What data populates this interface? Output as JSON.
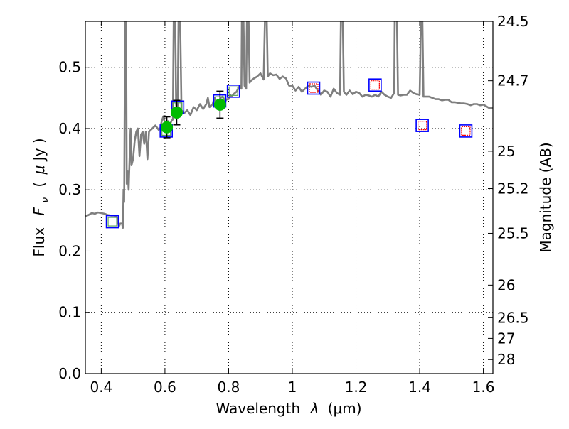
{
  "chart_data": {
    "type": "scatter",
    "title": "",
    "xlabel_text": "Wavelength",
    "xlabel_symbol": "λ",
    "xlabel_unit": "(μm)",
    "ylabel_text": "Flux",
    "ylabel_symbol": "F",
    "ylabel_subscript": "ν",
    "ylabel_unit_open": "(",
    "ylabel_unit_mu": "μ",
    "ylabel_unit_rest": "Jy )",
    "y2label": "Magnitude (AB)",
    "xlim": [
      0.35,
      1.63
    ],
    "ylim": [
      0.0,
      0.575
    ],
    "grid": true,
    "grid_style": "dotted",
    "x_ticks": [
      0.4,
      0.6,
      0.8,
      1.0,
      1.2,
      1.4,
      1.6
    ],
    "x_tick_labels": [
      "0.4",
      "0.6",
      "0.8",
      "1",
      "1.2",
      "1.4",
      "1.6"
    ],
    "y_ticks": [
      0.0,
      0.1,
      0.2,
      0.3,
      0.4,
      0.5
    ],
    "y_tick_labels": [
      "0.0",
      "0.1",
      "0.2",
      "0.3",
      "0.4",
      "0.5"
    ],
    "y2_ticks": [
      {
        "label": "24.5",
        "flux": 0.575
      },
      {
        "label": "24.7",
        "flux": 0.478
      },
      {
        "label": "25",
        "flux": 0.363
      },
      {
        "label": "25.2",
        "flux": 0.302
      },
      {
        "label": "25.5",
        "flux": 0.229
      },
      {
        "label": "26",
        "flux": 0.1445
      },
      {
        "label": "26.5",
        "flux": 0.0912
      },
      {
        "label": "27",
        "flux": 0.0575
      },
      {
        "label": "28",
        "flux": 0.0229
      }
    ],
    "colors": {
      "template": "#7f7f7f",
      "observed": "#00bb00",
      "model_box": "#0000ff",
      "model_inner_green": "#5aa55a",
      "model_inner_red": "#ff0000",
      "errorbar": "#000000",
      "grid": "#000000"
    },
    "series": [
      {
        "name": "template spectrum",
        "kind": "line",
        "points": [
          [
            0.35,
            0.257
          ],
          [
            0.36,
            0.259
          ],
          [
            0.37,
            0.262
          ],
          [
            0.38,
            0.261
          ],
          [
            0.39,
            0.263
          ],
          [
            0.4,
            0.262
          ],
          [
            0.41,
            0.261
          ],
          [
            0.42,
            0.259
          ],
          [
            0.43,
            0.258
          ],
          [
            0.44,
            0.258
          ],
          [
            0.45,
            0.255
          ],
          [
            0.455,
            0.24
          ],
          [
            0.46,
            0.245
          ],
          [
            0.465,
            0.245
          ],
          [
            0.468,
            0.238
          ],
          [
            0.47,
            0.3
          ],
          [
            0.472,
            0.28
          ],
          [
            0.475,
            0.6
          ],
          [
            0.478,
            0.6
          ],
          [
            0.48,
            0.31
          ],
          [
            0.483,
            0.33
          ],
          [
            0.486,
            0.3
          ],
          [
            0.489,
            0.35
          ],
          [
            0.492,
            0.4
          ],
          [
            0.495,
            0.34
          ],
          [
            0.5,
            0.35
          ],
          [
            0.505,
            0.38
          ],
          [
            0.51,
            0.395
          ],
          [
            0.515,
            0.4
          ],
          [
            0.52,
            0.355
          ],
          [
            0.525,
            0.39
          ],
          [
            0.53,
            0.395
          ],
          [
            0.535,
            0.375
          ],
          [
            0.54,
            0.395
          ],
          [
            0.545,
            0.35
          ],
          [
            0.55,
            0.395
          ],
          [
            0.56,
            0.4
          ],
          [
            0.57,
            0.405
          ],
          [
            0.58,
            0.398
          ],
          [
            0.585,
            0.4
          ],
          [
            0.59,
            0.412
          ],
          [
            0.595,
            0.42
          ],
          [
            0.6,
            0.408
          ],
          [
            0.605,
            0.41
          ],
          [
            0.61,
            0.412
          ],
          [
            0.615,
            0.405
          ],
          [
            0.62,
            0.412
          ],
          [
            0.625,
            0.415
          ],
          [
            0.628,
            0.6
          ],
          [
            0.632,
            0.6
          ],
          [
            0.635,
            0.44
          ],
          [
            0.64,
            0.42
          ],
          [
            0.643,
            0.6
          ],
          [
            0.647,
            0.6
          ],
          [
            0.652,
            0.43
          ],
          [
            0.66,
            0.425
          ],
          [
            0.67,
            0.43
          ],
          [
            0.68,
            0.422
          ],
          [
            0.69,
            0.435
          ],
          [
            0.7,
            0.43
          ],
          [
            0.71,
            0.44
          ],
          [
            0.72,
            0.432
          ],
          [
            0.73,
            0.44
          ],
          [
            0.735,
            0.45
          ],
          [
            0.74,
            0.435
          ],
          [
            0.75,
            0.44
          ],
          [
            0.755,
            0.45
          ],
          [
            0.76,
            0.442
          ],
          [
            0.765,
            0.445
          ],
          [
            0.77,
            0.445
          ],
          [
            0.775,
            0.45
          ],
          [
            0.78,
            0.452
          ],
          [
            0.79,
            0.445
          ],
          [
            0.795,
            0.448
          ],
          [
            0.8,
            0.448
          ],
          [
            0.805,
            0.455
          ],
          [
            0.81,
            0.452
          ],
          [
            0.815,
            0.456
          ],
          [
            0.82,
            0.458
          ],
          [
            0.825,
            0.46
          ],
          [
            0.83,
            0.465
          ],
          [
            0.835,
            0.47
          ],
          [
            0.84,
            0.465
          ],
          [
            0.842,
            0.6
          ],
          [
            0.846,
            0.6
          ],
          [
            0.85,
            0.47
          ],
          [
            0.855,
            0.465
          ],
          [
            0.858,
            0.6
          ],
          [
            0.862,
            0.6
          ],
          [
            0.866,
            0.475
          ],
          [
            0.87,
            0.478
          ],
          [
            0.88,
            0.482
          ],
          [
            0.89,
            0.485
          ],
          [
            0.9,
            0.49
          ],
          [
            0.91,
            0.48
          ],
          [
            0.915,
            0.6
          ],
          [
            0.919,
            0.6
          ],
          [
            0.923,
            0.485
          ],
          [
            0.93,
            0.49
          ],
          [
            0.94,
            0.487
          ],
          [
            0.95,
            0.488
          ],
          [
            0.96,
            0.481
          ],
          [
            0.97,
            0.485
          ],
          [
            0.98,
            0.482
          ],
          [
            0.99,
            0.47
          ],
          [
            1.0,
            0.47
          ],
          [
            1.01,
            0.462
          ],
          [
            1.02,
            0.468
          ],
          [
            1.03,
            0.46
          ],
          [
            1.04,
            0.465
          ],
          [
            1.05,
            0.47
          ],
          [
            1.06,
            0.468
          ],
          [
            1.07,
            0.47
          ],
          [
            1.08,
            0.462
          ],
          [
            1.09,
            0.455
          ],
          [
            1.1,
            0.462
          ],
          [
            1.11,
            0.46
          ],
          [
            1.12,
            0.452
          ],
          [
            1.13,
            0.465
          ],
          [
            1.14,
            0.458
          ],
          [
            1.15,
            0.455
          ],
          [
            1.153,
            0.6
          ],
          [
            1.158,
            0.6
          ],
          [
            1.162,
            0.46
          ],
          [
            1.17,
            0.455
          ],
          [
            1.18,
            0.462
          ],
          [
            1.19,
            0.456
          ],
          [
            1.2,
            0.46
          ],
          [
            1.21,
            0.458
          ],
          [
            1.22,
            0.452
          ],
          [
            1.23,
            0.455
          ],
          [
            1.24,
            0.454
          ],
          [
            1.25,
            0.452
          ],
          [
            1.26,
            0.455
          ],
          [
            1.27,
            0.452
          ],
          [
            1.28,
            0.46
          ],
          [
            1.29,
            0.455
          ],
          [
            1.3,
            0.452
          ],
          [
            1.31,
            0.45
          ],
          [
            1.32,
            0.458
          ],
          [
            1.322,
            0.6
          ],
          [
            1.328,
            0.6
          ],
          [
            1.332,
            0.455
          ],
          [
            1.34,
            0.454
          ],
          [
            1.35,
            0.455
          ],
          [
            1.36,
            0.455
          ],
          [
            1.37,
            0.462
          ],
          [
            1.38,
            0.458
          ],
          [
            1.39,
            0.456
          ],
          [
            1.4,
            0.455
          ],
          [
            1.405,
            0.6
          ],
          [
            1.408,
            0.6
          ],
          [
            1.412,
            0.452
          ],
          [
            1.42,
            0.452
          ],
          [
            1.43,
            0.452
          ],
          [
            1.44,
            0.45
          ],
          [
            1.45,
            0.448
          ],
          [
            1.46,
            0.448
          ],
          [
            1.47,
            0.446
          ],
          [
            1.48,
            0.447
          ],
          [
            1.49,
            0.447
          ],
          [
            1.5,
            0.443
          ],
          [
            1.51,
            0.443
          ],
          [
            1.52,
            0.442
          ],
          [
            1.53,
            0.441
          ],
          [
            1.54,
            0.441
          ],
          [
            1.55,
            0.44
          ],
          [
            1.56,
            0.438
          ],
          [
            1.57,
            0.44
          ],
          [
            1.58,
            0.44
          ],
          [
            1.59,
            0.438
          ],
          [
            1.6,
            0.439
          ],
          [
            1.61,
            0.436
          ],
          [
            1.62,
            0.433
          ],
          [
            1.63,
            0.434
          ]
        ]
      },
      {
        "name": "observed photometry",
        "kind": "points_with_errors",
        "points": [
          {
            "x": 0.606,
            "y": 0.402,
            "err": 0.017
          },
          {
            "x": 0.637,
            "y": 0.426,
            "err": 0.02
          },
          {
            "x": 0.773,
            "y": 0.439,
            "err": 0.022
          }
        ]
      },
      {
        "name": "model band fluxes",
        "kind": "squares",
        "points": [
          {
            "x": 0.435,
            "y": 0.248,
            "inner": "green"
          },
          {
            "x": 0.604,
            "y": 0.396,
            "inner": "green"
          },
          {
            "x": 0.64,
            "y": 0.435,
            "inner": "green"
          },
          {
            "x": 0.772,
            "y": 0.445,
            "inner": "green"
          },
          {
            "x": 0.815,
            "y": 0.461,
            "inner": "green"
          },
          {
            "x": 1.067,
            "y": 0.466,
            "inner": "red"
          },
          {
            "x": 1.26,
            "y": 0.471,
            "inner": "red"
          },
          {
            "x": 1.408,
            "y": 0.405,
            "inner": "red"
          },
          {
            "x": 1.545,
            "y": 0.396,
            "inner": "red"
          }
        ]
      }
    ]
  }
}
